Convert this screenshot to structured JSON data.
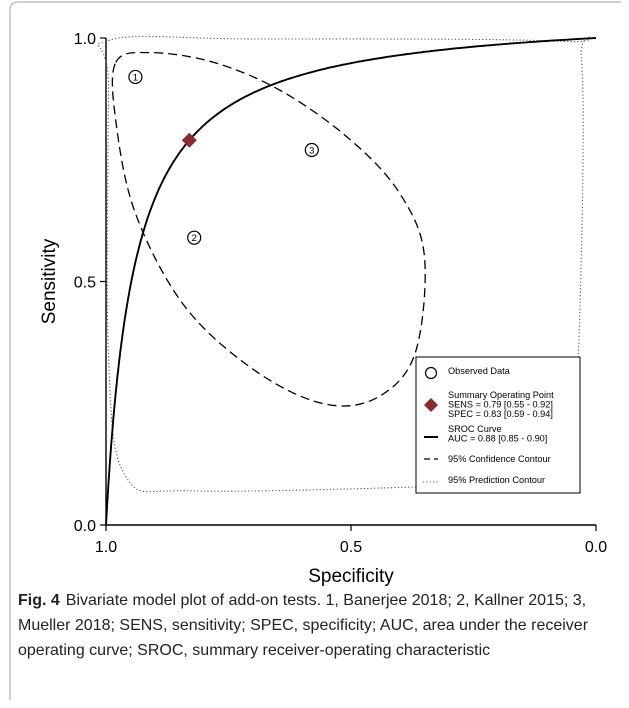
{
  "chart_data": {
    "type": "scatter",
    "xlabel": "Specificity",
    "ylabel": "Sensitivity",
    "xlim": [
      1.0,
      0.0
    ],
    "ylim": [
      0.0,
      1.0
    ],
    "x_ticks": [
      "1.0",
      "0.5",
      "0.0"
    ],
    "y_ticks": [
      "0.0",
      "0.5",
      "1.0"
    ],
    "grid": false,
    "legend_position": "bottom-right",
    "observed": [
      {
        "label": "1",
        "specificity": 0.94,
        "sensitivity": 0.92
      },
      {
        "label": "2",
        "specificity": 0.82,
        "sensitivity": 0.59
      },
      {
        "label": "3",
        "specificity": 0.58,
        "sensitivity": 0.77
      }
    ],
    "summary_point": {
      "specificity": 0.83,
      "sensitivity": 0.79,
      "color": "#8b2a2e"
    },
    "sroc_auc": 0.88,
    "confidence_contour": [
      [
        0.98,
        0.95
      ],
      [
        0.91,
        0.97
      ],
      [
        0.78,
        0.95
      ],
      [
        0.64,
        0.89
      ],
      [
        0.5,
        0.79
      ],
      [
        0.4,
        0.68
      ],
      [
        0.35,
        0.55
      ],
      [
        0.37,
        0.35
      ],
      [
        0.45,
        0.26
      ],
      [
        0.56,
        0.25
      ],
      [
        0.7,
        0.32
      ],
      [
        0.84,
        0.45
      ],
      [
        0.94,
        0.64
      ],
      [
        0.98,
        0.83
      ]
    ],
    "prediction_contour": [
      [
        0.995,
        0.995
      ],
      [
        0.7,
        0.998
      ],
      [
        0.07,
        0.993
      ],
      [
        0.03,
        0.96
      ],
      [
        0.03,
        0.55
      ],
      [
        0.05,
        0.12
      ],
      [
        0.09,
        0.09
      ],
      [
        0.3,
        0.08
      ],
      [
        0.82,
        0.07
      ],
      [
        0.96,
        0.1
      ],
      [
        0.995,
        0.35
      ],
      [
        0.995,
        0.9
      ]
    ],
    "legend": [
      {
        "symbol": "circle",
        "lines": [
          "Observed Data"
        ]
      },
      {
        "symbol": "diamond",
        "lines": [
          "Summary Operating Point",
          "SENS = 0.79 [0.55 - 0.92]",
          "SPEC = 0.83 [0.59 - 0.94]"
        ]
      },
      {
        "symbol": "solid",
        "lines": [
          "SROC Curve",
          "AUC = 0.88 [0.85 - 0.90]"
        ]
      },
      {
        "symbol": "dashed",
        "lines": [
          "95% Confidence Contour"
        ]
      },
      {
        "symbol": "dotted",
        "lines": [
          "95% Prediction Contour"
        ]
      }
    ]
  },
  "caption": {
    "label": "Fig. 4",
    "text": "Bivariate model plot of add-on tests. 1, Banerjee 2018; 2, Kallner 2015; 3, Mueller 2018; SENS, sensitivity; SPEC, specificity; AUC, area under the receiver operating curve; SROC, summary receiver-operating characteristic"
  }
}
